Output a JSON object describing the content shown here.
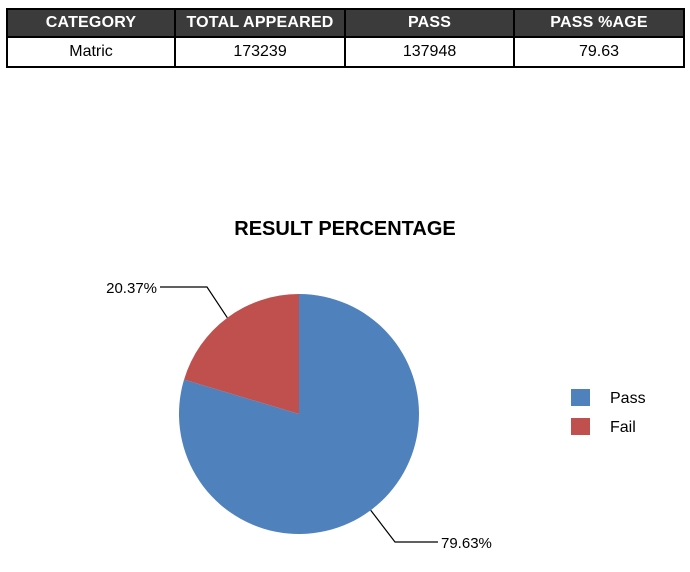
{
  "table": {
    "headers": [
      "CATEGORY",
      "TOTAL APPEARED",
      "PASS",
      "PASS %AGE"
    ],
    "rows": [
      [
        "Matric",
        "173239",
        "137948",
        "79.63"
      ]
    ],
    "header_bg": "#3b3b3b"
  },
  "chart_data": {
    "type": "pie",
    "title": "RESULT PERCENTAGE",
    "slices": [
      {
        "name": "Pass",
        "value": 79.63,
        "label": "79.63%",
        "color": "#4f81bd"
      },
      {
        "name": "Fail",
        "value": 20.37,
        "label": "20.37%",
        "color": "#c0504d"
      }
    ],
    "legend_position": "right",
    "grid": false
  }
}
